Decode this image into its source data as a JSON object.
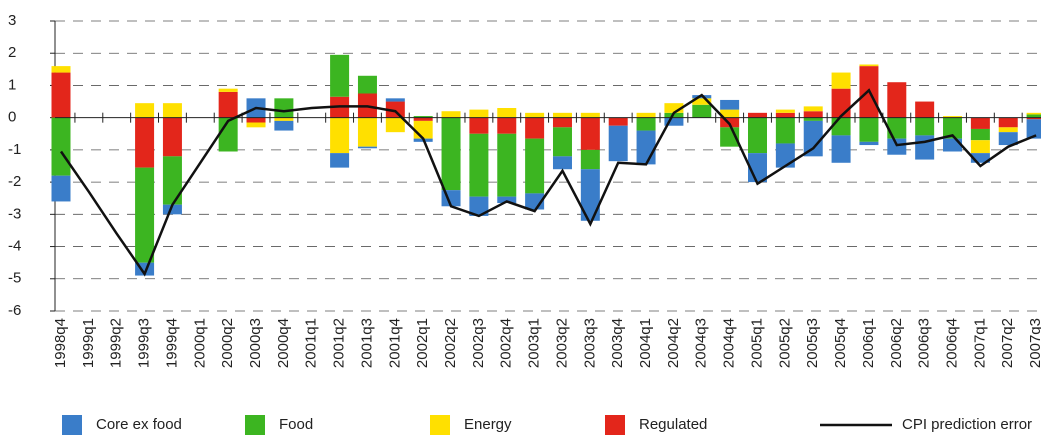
{
  "chart_data": {
    "type": "bar",
    "categories": [
      "1998q4",
      "1999q1",
      "1999q2",
      "1999q3",
      "1999q4",
      "2000q1",
      "2000q2",
      "2000q3",
      "2000q4",
      "2001q1",
      "2001q2",
      "2001q3",
      "2001q4",
      "2002q1",
      "2002q2",
      "2002q3",
      "2002q4",
      "2003q1",
      "2003q2",
      "2003q3",
      "2003q4",
      "2004q1",
      "2004q2",
      "2004q3",
      "2004q4",
      "2005q1",
      "2005q2",
      "2005q3",
      "2005q4",
      "2006q1",
      "2006q2",
      "2006q3",
      "2006q4",
      "2007q1",
      "2007q2",
      "2007q3"
    ],
    "series": [
      {
        "name": "Core ex food",
        "color": "#3a7dc9",
        "values": [
          -0.8,
          0,
          0,
          -0.4,
          -0.3,
          0,
          0,
          0.6,
          -0.3,
          0,
          -0.45,
          -0.05,
          0.1,
          -0.1,
          -0.5,
          -0.6,
          -0.2,
          -0.5,
          -0.4,
          -1.6,
          -1.1,
          -1.05,
          -0.25,
          0.1,
          0.3,
          -0.9,
          -0.75,
          -1.1,
          -0.85,
          -0.1,
          -0.5,
          -0.75,
          -0.4,
          -0.3,
          -0.4,
          -0.6
        ]
      },
      {
        "name": "Food",
        "color": "#3cb521",
        "values": [
          -1.8,
          0,
          0,
          -2.95,
          -1.5,
          0,
          -1.05,
          0,
          0.6,
          0,
          1.3,
          0.55,
          0,
          0.05,
          -2.25,
          -1.95,
          -1.95,
          -1.7,
          -0.9,
          -0.6,
          0,
          -0.4,
          0.15,
          0.4,
          -0.6,
          -1.1,
          -0.8,
          -0.1,
          -0.55,
          -0.75,
          -0.65,
          -0.55,
          -0.65,
          -0.35,
          0,
          0.1
        ]
      },
      {
        "name": "Energy",
        "color": "#ffe000",
        "values": [
          0.2,
          0,
          0,
          0.45,
          0.45,
          0,
          0.1,
          -0.15,
          -0.1,
          0,
          -1.1,
          -0.9,
          -0.45,
          -0.55,
          0.2,
          0.25,
          0.3,
          0.15,
          0.15,
          0.15,
          0,
          0.15,
          0.3,
          0.2,
          0.25,
          0,
          0.1,
          0.15,
          0.5,
          0.05,
          0,
          0,
          0.05,
          -0.4,
          -0.15,
          0.05
        ]
      },
      {
        "name": "Regulated",
        "color": "#e3261b",
        "values": [
          1.4,
          0,
          0,
          -1.55,
          -1.2,
          0,
          0.8,
          -0.15,
          0,
          0,
          0.65,
          0.75,
          0.5,
          -0.1,
          0,
          -0.5,
          -0.5,
          -0.65,
          -0.3,
          -1.0,
          -0.25,
          0,
          0,
          0,
          -0.3,
          0.15,
          0.15,
          0.2,
          0.9,
          1.6,
          1.1,
          0.5,
          0,
          -0.35,
          -0.3,
          -0.05
        ]
      },
      {
        "name": "CPI prediction error",
        "type": "line",
        "color": "#111111",
        "values": [
          -1.05,
          -2.3,
          -3.6,
          -4.85,
          -2.7,
          -1.4,
          -0.1,
          0.3,
          0.2,
          0.3,
          0.35,
          0.35,
          0.2,
          -0.65,
          -2.75,
          -3.05,
          -2.6,
          -2.9,
          -1.65,
          -3.3,
          -1.4,
          -1.45,
          0.15,
          0.7,
          -0.2,
          -2.05,
          -1.5,
          -0.95,
          0.05,
          0.85,
          -0.85,
          -0.75,
          -0.55,
          -1.5,
          -0.9,
          -0.55
        ]
      }
    ],
    "ylim": [
      -6,
      3
    ],
    "yticks": [
      -6,
      -5,
      -4,
      -3,
      -2,
      -1,
      0,
      1,
      2,
      3
    ],
    "grid": true
  }
}
